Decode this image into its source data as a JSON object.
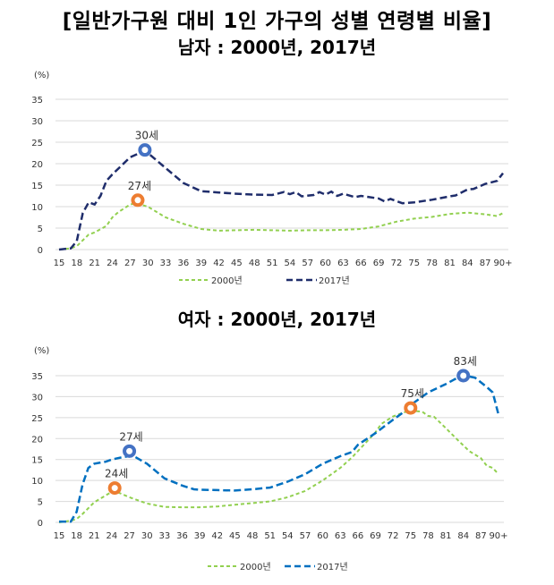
{
  "title": "[일반가구원 대비 1인 가구의 성별 연령별 비율]",
  "chart_data": [
    {
      "type": "line",
      "title": "남자 : 2000년, 2017년",
      "ylabel": "(%)",
      "ylim": [
        0,
        35
      ],
      "yticks": [
        0,
        5,
        10,
        15,
        20,
        25,
        30,
        35
      ],
      "xlim": [
        15,
        90
      ],
      "xticks": [
        "15",
        "18",
        "21",
        "24",
        "27",
        "30",
        "33",
        "36",
        "39",
        "42",
        "45",
        "48",
        "51",
        "54",
        "57",
        "60",
        "63",
        "66",
        "69",
        "72",
        "75",
        "78",
        "81",
        "84",
        "87",
        "90+"
      ],
      "grid": true,
      "legend": "bottom",
      "series": [
        {
          "name": "2000년",
          "color": "#92d050",
          "dash": "short",
          "x": [
            15,
            17,
            18,
            20,
            21,
            23,
            24,
            25,
            27,
            28,
            30,
            33,
            36,
            39,
            42,
            45,
            48,
            51,
            54,
            57,
            60,
            63,
            66,
            69,
            72,
            75,
            78,
            81,
            84,
            87,
            89,
            90
          ],
          "y": [
            0,
            0.3,
            0.8,
            3.5,
            4,
            5.5,
            7.5,
            8.7,
            10.5,
            10.8,
            10,
            7.5,
            6,
            4.8,
            4.4,
            4.5,
            4.6,
            4.5,
            4.4,
            4.5,
            4.5,
            4.6,
            4.8,
            5.4,
            6.5,
            7.2,
            7.6,
            8.3,
            8.6,
            8.2,
            7.8,
            8.5
          ]
        },
        {
          "name": "2017년",
          "color": "#1f2d6b",
          "dash": "long",
          "x": [
            15,
            17,
            18,
            19,
            20,
            21,
            22,
            23,
            24,
            27,
            29,
            30,
            33,
            36,
            39,
            42,
            45,
            48,
            51,
            53,
            54,
            55,
            56,
            58,
            59,
            60,
            61,
            62,
            63,
            65,
            66,
            69,
            70,
            71,
            73,
            75,
            78,
            81,
            82,
            84,
            85,
            87,
            89,
            90
          ],
          "y": [
            0,
            0.3,
            2,
            8.5,
            11,
            10.5,
            12.5,
            16,
            17.5,
            21.5,
            22.7,
            22.5,
            19,
            15.5,
            13.6,
            13.3,
            13,
            12.8,
            12.7,
            13.4,
            12.9,
            13.4,
            12.4,
            12.7,
            13.4,
            12.8,
            13.5,
            12.5,
            13,
            12.2,
            12.5,
            11.9,
            11.2,
            11.8,
            10.8,
            11,
            11.6,
            12.4,
            12.6,
            14,
            14.1,
            15.3,
            16,
            17.8
          ]
        }
      ],
      "annotations": [
        {
          "text": "30세",
          "x": 29.5,
          "y": 23.2,
          "color": "#4472c4"
        },
        {
          "text": "27세",
          "x": 28.3,
          "y": 11.5,
          "color": "#ed7d31"
        }
      ]
    },
    {
      "type": "line",
      "title": "여자 : 2000년, 2017년",
      "ylabel": "(%)",
      "ylim": [
        0,
        35
      ],
      "yticks": [
        0,
        5,
        10,
        15,
        20,
        25,
        30,
        35
      ],
      "xlim": [
        15,
        90
      ],
      "xticks": [
        "15",
        "18",
        "21",
        "24",
        "27",
        "30",
        "33",
        "36",
        "39",
        "42",
        "45",
        "48",
        "51",
        "54",
        "57",
        "60",
        "63",
        "66",
        "69",
        "72",
        "75",
        "78",
        "81",
        "84",
        "87",
        "90+"
      ],
      "grid": true,
      "legend": "bottom",
      "series": [
        {
          "name": "2000년",
          "color": "#92d050",
          "dash": "short",
          "x": [
            15,
            17,
            18,
            19,
            21,
            24,
            25,
            27,
            30,
            33,
            36,
            39,
            42,
            45,
            48,
            51,
            54,
            57,
            60,
            63,
            65,
            66,
            68,
            69,
            70,
            72,
            74,
            75,
            77,
            78,
            79,
            81,
            83,
            85,
            87,
            88,
            89,
            90
          ],
          "y": [
            0,
            0.4,
            0.8,
            2,
            4.8,
            7.3,
            7.2,
            6,
            4.5,
            3.7,
            3.6,
            3.6,
            3.8,
            4.2,
            4.6,
            5,
            6,
            7.5,
            10,
            13,
            15.5,
            17,
            20,
            21.5,
            23.5,
            25.3,
            26.3,
            26.7,
            26.4,
            25.4,
            25.2,
            22.5,
            19.7,
            17,
            15.3,
            13.5,
            13,
            11.5
          ]
        },
        {
          "name": "2017년",
          "color": "#0070c0",
          "dash": "long",
          "x": [
            15,
            17,
            18,
            19,
            20,
            21,
            23,
            24,
            26,
            27,
            28,
            30,
            33,
            36,
            38,
            39,
            42,
            45,
            48,
            51,
            54,
            57,
            60,
            62,
            63,
            65,
            66,
            69,
            72,
            74,
            75,
            78,
            81,
            83,
            84,
            85,
            86,
            88,
            89,
            90
          ],
          "y": [
            0.2,
            0.2,
            2.5,
            9,
            13,
            14,
            14.5,
            15,
            15.6,
            15.8,
            15.6,
            14,
            10.5,
            8.8,
            7.9,
            7.8,
            7.7,
            7.6,
            7.9,
            8.3,
            9.7,
            11.5,
            14,
            15.2,
            15.8,
            16.8,
            18.5,
            21.3,
            24.5,
            26.5,
            28,
            31,
            33,
            34.5,
            35,
            34.8,
            34.5,
            32.3,
            31,
            25.7
          ]
        }
      ],
      "annotations": [
        {
          "text": "27세",
          "x": 27,
          "y": 17,
          "color": "#4472c4"
        },
        {
          "text": "24세",
          "x": 24.5,
          "y": 8.2,
          "color": "#ed7d31"
        },
        {
          "text": "75세",
          "x": 75,
          "y": 27.3,
          "color": "#ed7d31"
        },
        {
          "text": "83세",
          "x": 84,
          "y": 35,
          "color": "#4472c4"
        }
      ]
    }
  ]
}
